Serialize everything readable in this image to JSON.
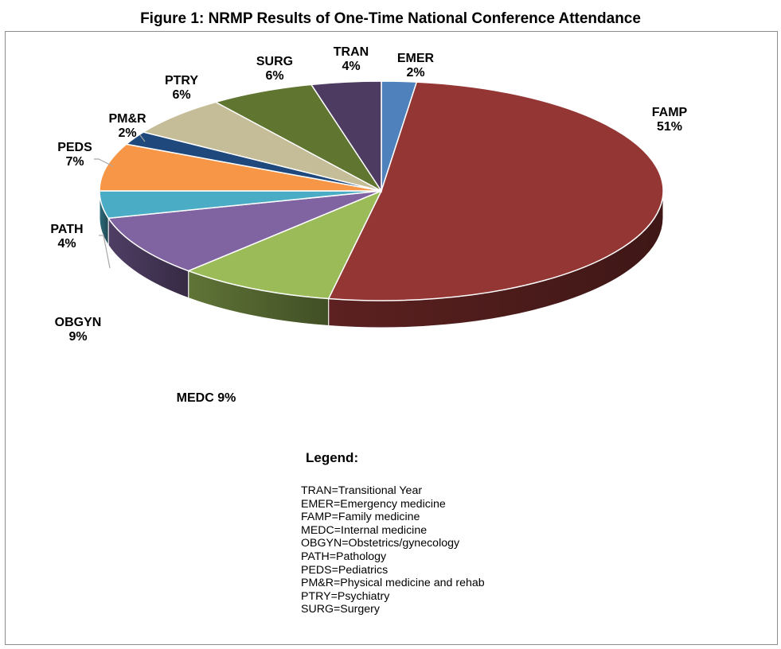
{
  "title": "Figure 1: NRMP Results of One-Time National Conference Attendance",
  "legend": {
    "title": "Legend:",
    "items": [
      "TRAN=Transitional Year",
      "EMER=Emergency medicine",
      "FAMP=Family medicine",
      "MEDC=Internal medicine",
      "OBGYN=Obstetrics/gynecology",
      "PATH=Pathology",
      "PEDS=Pediatrics",
      "PM&R=Physical medicine and rehab",
      "PTRY=Psychiatry",
      "SURG=Surgery"
    ]
  },
  "chart_data": {
    "type": "pie",
    "style": "3d",
    "slices": [
      {
        "label": "EMER",
        "value": 2,
        "display": [
          "EMER",
          "2%"
        ],
        "color": "#4f81bd"
      },
      {
        "label": "FAMP",
        "value": 51,
        "display": [
          "FAMP",
          "51%"
        ],
        "color": "#943634"
      },
      {
        "label": "MEDC",
        "value": 9,
        "display": [
          "MEDC 9%"
        ],
        "color": "#9bbb59"
      },
      {
        "label": "OBGYN",
        "value": 9,
        "display": [
          "OBGYN",
          "9%"
        ],
        "color": "#8064a2"
      },
      {
        "label": "PATH",
        "value": 4,
        "display": [
          "PATH",
          "4%"
        ],
        "color": "#4bacc6"
      },
      {
        "label": "PEDS",
        "value": 7,
        "display": [
          "PEDS",
          "7%"
        ],
        "color": "#f79646"
      },
      {
        "label": "PM&R",
        "value": 2,
        "display": [
          "PM&R",
          "2%"
        ],
        "color": "#1f497d"
      },
      {
        "label": "PTRY",
        "value": 6,
        "display": [
          "PTRY",
          "6%"
        ],
        "color": "#c4bd97"
      },
      {
        "label": "SURG",
        "value": 6,
        "display": [
          "SURG",
          "6%"
        ],
        "color": "#5f7530"
      },
      {
        "label": "TRAN",
        "value": 4,
        "display": [
          "TRAN",
          "4%"
        ],
        "color": "#4e3b62"
      }
    ]
  }
}
